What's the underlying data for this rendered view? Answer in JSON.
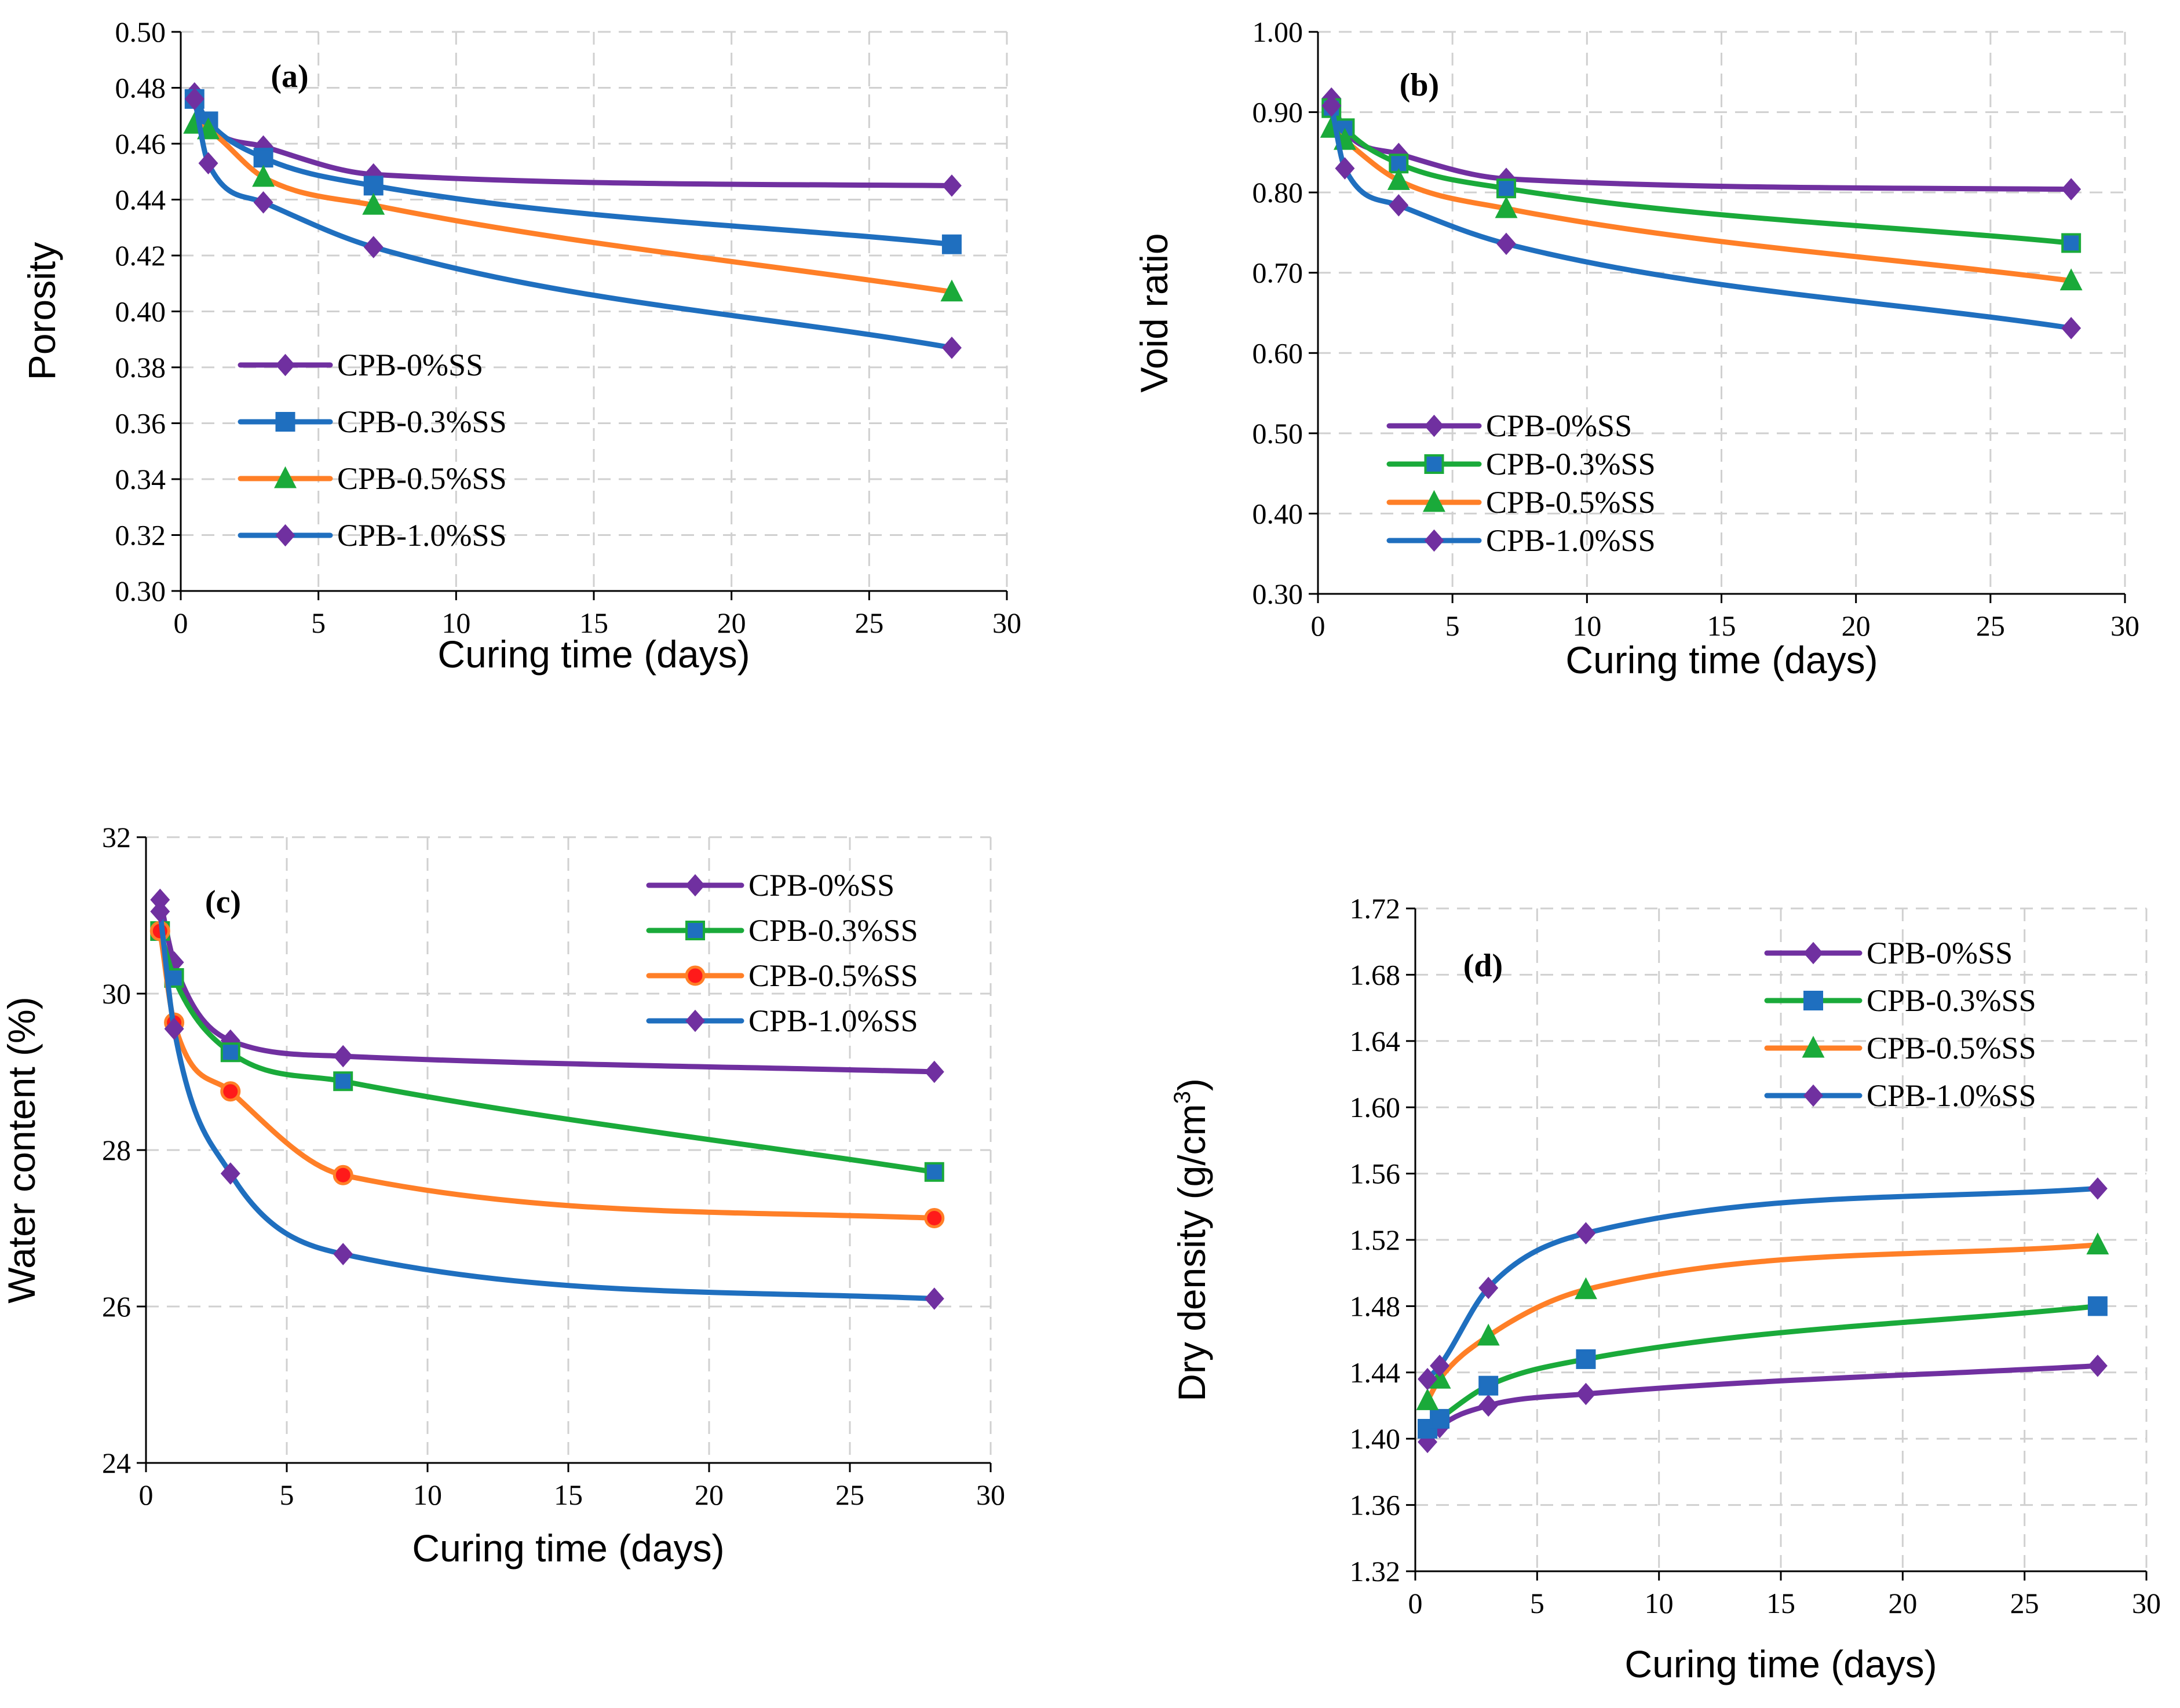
{
  "colors": {
    "purple": "#7030a0",
    "blue": "#1f6fbf",
    "green": "#1aaa3a",
    "orange": "#ff7f27",
    "red": "#ff1a1a",
    "grid": "#d0d0d0"
  },
  "chart_data": [
    {
      "id": "a",
      "type": "line",
      "label": "(a)",
      "xlabel": "Curing time (days)",
      "ylabel": "Porosity",
      "xlim": [
        0,
        30
      ],
      "ylim": [
        0.3,
        0.5
      ],
      "xticks": [
        0,
        5,
        10,
        15,
        20,
        25,
        30
      ],
      "yticks": [
        0.3,
        0.32,
        0.34,
        0.36,
        0.38,
        0.4,
        0.42,
        0.44,
        0.46,
        0.48,
        0.5
      ],
      "ytick_decimals": 2,
      "x": [
        0.5,
        1,
        3,
        7,
        28
      ],
      "legend_position": "bottom-left",
      "series": [
        {
          "name": "CPB-0%SS",
          "values": [
            0.478,
            0.467,
            0.459,
            0.449,
            0.445
          ],
          "line_color": "purple",
          "marker": "diamond",
          "marker_fill": "purple",
          "marker_stroke": "purple"
        },
        {
          "name": "CPB-0.3%SS",
          "values": [
            0.476,
            0.468,
            0.455,
            0.445,
            0.424
          ],
          "line_color": "blue",
          "marker": "square",
          "marker_fill": "blue",
          "marker_stroke": "blue"
        },
        {
          "name": "CPB-0.5%SS",
          "values": [
            0.467,
            0.465,
            0.448,
            0.438,
            0.407
          ],
          "line_color": "orange",
          "marker": "triangle",
          "marker_fill": "green",
          "marker_stroke": "green"
        },
        {
          "name": "CPB-1.0%SS",
          "values": [
            0.476,
            0.453,
            0.439,
            0.423,
            0.387
          ],
          "line_color": "blue",
          "marker": "diamond",
          "marker_fill": "purple",
          "marker_stroke": "purple"
        }
      ]
    },
    {
      "id": "b",
      "type": "line",
      "label": "(b)",
      "xlabel": "Curing time (days)",
      "ylabel": "Void ratio",
      "xlim": [
        0,
        30
      ],
      "ylim": [
        0.3,
        1.0
      ],
      "xticks": [
        0,
        5,
        10,
        15,
        20,
        25,
        30
      ],
      "yticks": [
        0.3,
        0.4,
        0.5,
        0.6,
        0.7,
        0.8,
        0.9,
        1.0
      ],
      "ytick_decimals": 2,
      "x": [
        0.5,
        1,
        3,
        7,
        28
      ],
      "legend_position": "bottom-left",
      "series": [
        {
          "name": "CPB-0%SS",
          "values": [
            0.917,
            0.877,
            0.848,
            0.817,
            0.804
          ],
          "line_color": "purple",
          "marker": "diamond",
          "marker_fill": "purple",
          "marker_stroke": "purple"
        },
        {
          "name": "CPB-0.3%SS",
          "values": [
            0.905,
            0.88,
            0.836,
            0.805,
            0.737
          ],
          "line_color": "green",
          "marker": "square",
          "marker_fill": "blue",
          "marker_stroke": "green"
        },
        {
          "name": "CPB-0.5%SS",
          "values": [
            0.88,
            0.865,
            0.815,
            0.78,
            0.69
          ],
          "line_color": "orange",
          "marker": "triangle",
          "marker_fill": "green",
          "marker_stroke": "green"
        },
        {
          "name": "CPB-1.0%SS",
          "values": [
            0.908,
            0.83,
            0.784,
            0.736,
            0.631
          ],
          "line_color": "blue",
          "marker": "diamond",
          "marker_fill": "purple",
          "marker_stroke": "purple"
        }
      ]
    },
    {
      "id": "c",
      "type": "line",
      "label": "(c)",
      "xlabel": "Curing time (days)",
      "ylabel": "Water content (%)",
      "xlim": [
        0,
        30
      ],
      "ylim": [
        24,
        32
      ],
      "xticks": [
        0,
        5,
        10,
        15,
        20,
        25,
        30
      ],
      "yticks": [
        24,
        26,
        28,
        30,
        32
      ],
      "ytick_decimals": 0,
      "x": [
        0.5,
        1,
        3,
        7,
        28
      ],
      "legend_position": "top-right",
      "series": [
        {
          "name": "CPB-0%SS",
          "values": [
            31.2,
            30.4,
            29.4,
            29.2,
            29.0
          ],
          "line_color": "purple",
          "marker": "diamond",
          "marker_fill": "purple",
          "marker_stroke": "purple"
        },
        {
          "name": "CPB-0.3%SS",
          "values": [
            30.8,
            30.2,
            29.25,
            28.88,
            27.72
          ],
          "line_color": "green",
          "marker": "square",
          "marker_fill": "blue",
          "marker_stroke": "green"
        },
        {
          "name": "CPB-0.5%SS",
          "values": [
            30.8,
            29.63,
            28.75,
            27.68,
            27.13
          ],
          "line_color": "orange",
          "marker": "circle",
          "marker_fill": "red",
          "marker_stroke": "orange"
        },
        {
          "name": "CPB-1.0%SS",
          "values": [
            31.05,
            29.55,
            27.7,
            26.67,
            26.1
          ],
          "line_color": "blue",
          "marker": "diamond",
          "marker_fill": "purple",
          "marker_stroke": "purple"
        }
      ]
    },
    {
      "id": "d",
      "type": "line",
      "label": "(d)",
      "xlabel": "Curing time (days)",
      "ylabel": "Dry density (g/cm",
      "ylabel_sup": "3",
      "ylabel_end": ")",
      "xlim": [
        0,
        30
      ],
      "ylim": [
        1.32,
        1.72
      ],
      "xticks": [
        0,
        5,
        10,
        15,
        20,
        25,
        30
      ],
      "yticks": [
        1.32,
        1.36,
        1.4,
        1.44,
        1.48,
        1.52,
        1.56,
        1.6,
        1.64,
        1.68,
        1.72
      ],
      "ytick_decimals": 2,
      "x": [
        0.5,
        1,
        3,
        7,
        28
      ],
      "legend_position": "top-right",
      "series": [
        {
          "name": "CPB-0%SS",
          "values": [
            1.398,
            1.407,
            1.42,
            1.427,
            1.444
          ],
          "line_color": "purple",
          "marker": "diamond",
          "marker_fill": "purple",
          "marker_stroke": "purple"
        },
        {
          "name": "CPB-0.3%SS",
          "values": [
            1.406,
            1.412,
            1.432,
            1.448,
            1.48
          ],
          "line_color": "green",
          "marker": "square",
          "marker_fill": "blue",
          "marker_stroke": "blue"
        },
        {
          "name": "CPB-0.5%SS",
          "values": [
            1.423,
            1.436,
            1.462,
            1.49,
            1.517
          ],
          "line_color": "orange",
          "marker": "triangle",
          "marker_fill": "green",
          "marker_stroke": "green"
        },
        {
          "name": "CPB-1.0%SS",
          "values": [
            1.436,
            1.444,
            1.491,
            1.524,
            1.551
          ],
          "line_color": "blue",
          "marker": "diamond",
          "marker_fill": "purple",
          "marker_stroke": "purple"
        }
      ]
    }
  ]
}
